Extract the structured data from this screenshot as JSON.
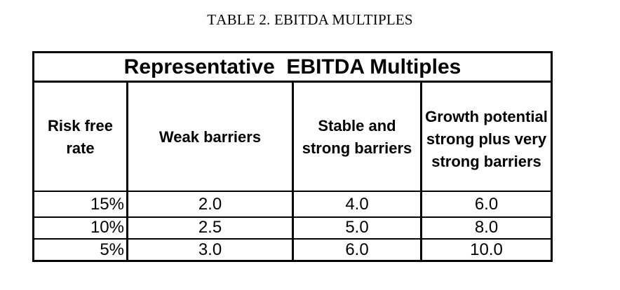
{
  "caption": {
    "prefix": "T",
    "word1_rest": "ABLE",
    "number": "2.",
    "middle": "EBITDA M",
    "word_last_rest": "ULTIPLES"
  },
  "table": {
    "title": "Representative  EBITDA Multiples",
    "headers": [
      "Risk free rate",
      "Weak barriers",
      "Stable and strong barriers",
      "Growth potential strong plus very strong barriers"
    ],
    "rows": [
      [
        "15%",
        "2.0",
        "4.0",
        "6.0"
      ],
      [
        "10%",
        "2.5",
        "5.0",
        "8.0"
      ],
      [
        "5%",
        "3.0",
        "6.0",
        "10.0"
      ]
    ]
  }
}
